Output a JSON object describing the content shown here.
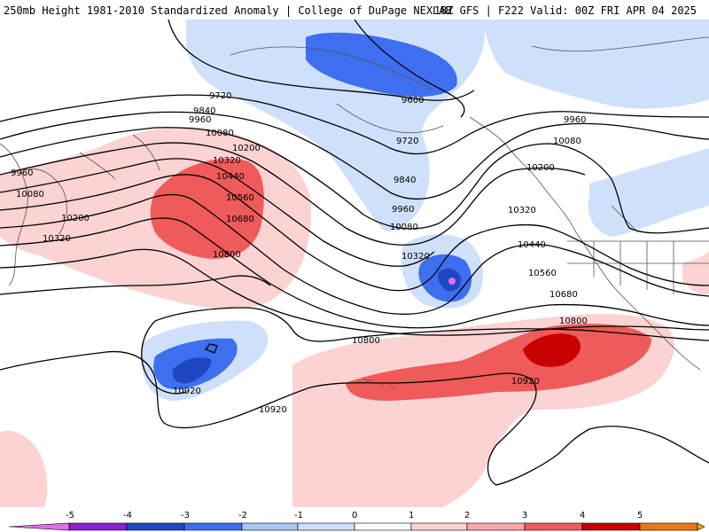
{
  "header": {
    "left": "250mb Height 1981-2010 Standardized Anomaly | College of DuPage NEXLAB",
    "right": "18Z GFS | F222 Valid: 00Z FRI APR 04 2025"
  },
  "colors": {
    "anom_neg5": "#e070e8",
    "anom_neg4": "#8a1fcf",
    "anom_neg3": "#1f47c2",
    "anom_neg2": "#3d6ff0",
    "anom_neg1": "#a9c7f7",
    "anom_neg05": "#cfe0fb",
    "anom_0": "#ffffff",
    "anom_pos05": "#fbd3d3",
    "anom_pos1": "#f6a7a7",
    "anom_pos2": "#ef5a5a",
    "anom_pos3": "#c80000",
    "anom_pos4": "#e8781a",
    "anom_pos5": "#f5a800",
    "contour": "#000000",
    "coast": "#555555"
  },
  "contour_labels": [
    "9720",
    "9840",
    "9960",
    "10080",
    "10200",
    "10320",
    "10440",
    "10560",
    "10680",
    "10800",
    "10920",
    "9600",
    "9720",
    "9840",
    "9960",
    "10080",
    "10320",
    "10440",
    "10560",
    "10680",
    "10800",
    "10920",
    "9960",
    "10080",
    "10200",
    "10320",
    "9960",
    "10080",
    "10200",
    "10320",
    "10800",
    "10920"
  ],
  "colorbar": {
    "labels": [
      "-5",
      "-4",
      "-3",
      "-2",
      "-1",
      "0",
      "1",
      "2",
      "3",
      "4",
      "5"
    ]
  }
}
